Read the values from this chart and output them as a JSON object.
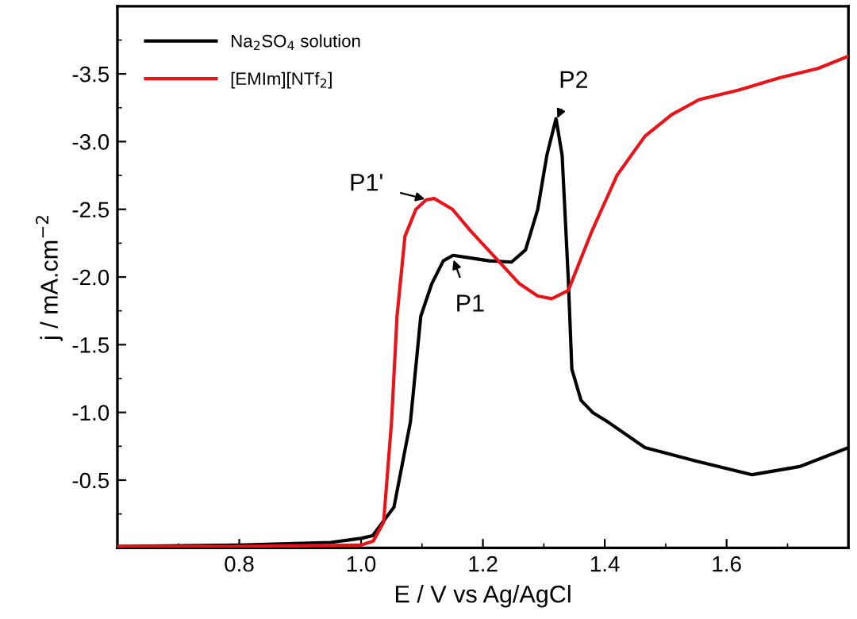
{
  "chart_data": {
    "type": "line",
    "xlabel": "E / V vs Ag/AgCl",
    "ylabel": "j / mA.cm$^{−2}$",
    "xlim": [
      0.6,
      1.8
    ],
    "ylim": [
      0,
      -4.0
    ],
    "xticks": [
      0.8,
      {
        "value": 1.0,
        "label": "1.0"
      },
      1.2,
      1.4,
      1.6
    ],
    "yticks": [
      -0.5,
      {
        "value": -1.0,
        "label": "-1.0"
      },
      -1.5,
      {
        "value": -2.0,
        "label": "-2.0"
      },
      -2.5,
      {
        "value": -3.0,
        "label": "-3.0"
      },
      -3.5
    ],
    "grid": false,
    "legend": "top left",
    "marker": "none",
    "line_style": "solid",
    "series": [
      {
        "name": "Na$_{2}$SO$_{4}$ solution",
        "color": "#000000",
        "x": [
          0.6,
          0.8,
          0.95,
          1.0,
          1.019,
          1.054,
          1.081,
          1.098,
          1.116,
          1.135,
          1.151,
          1.18,
          1.21,
          1.247,
          1.27,
          1.29,
          1.305,
          1.32,
          1.33,
          1.34,
          1.346,
          1.361,
          1.38,
          1.405,
          1.466,
          1.55,
          1.642,
          1.72,
          1.8
        ],
        "values": [
          -0.01,
          -0.02,
          -0.04,
          -0.07,
          -0.09,
          -0.3,
          -0.93,
          -1.71,
          -1.95,
          -2.12,
          -2.16,
          -2.14,
          -2.12,
          -2.11,
          -2.2,
          -2.5,
          -2.9,
          -3.17,
          -2.9,
          -2.0,
          -1.32,
          -1.09,
          -1.0,
          -0.93,
          -0.74,
          -0.64,
          -0.54,
          -0.6,
          -0.74
        ]
      },
      {
        "name": "[EMIm][NTf$_{2}$]",
        "color": "#e8141a",
        "x": [
          0.6,
          0.8,
          1.0,
          1.02,
          1.037,
          1.05,
          1.059,
          1.072,
          1.09,
          1.107,
          1.12,
          1.15,
          1.18,
          1.221,
          1.26,
          1.29,
          1.313,
          1.34,
          1.379,
          1.42,
          1.466,
          1.51,
          1.555,
          1.62,
          1.686,
          1.75,
          1.8
        ],
        "values": [
          -0.01,
          -0.01,
          -0.02,
          -0.05,
          -0.19,
          -0.93,
          -1.71,
          -2.3,
          -2.5,
          -2.57,
          -2.58,
          -2.5,
          -2.34,
          -2.14,
          -1.95,
          -1.86,
          -1.84,
          -1.9,
          -2.34,
          -2.75,
          -3.04,
          -3.2,
          -3.31,
          -3.38,
          -3.47,
          -3.54,
          -3.63
        ]
      }
    ],
    "annotations": [
      {
        "text": "P1'",
        "x": 1.11,
        "y": -2.57
      },
      {
        "text": "P1",
        "x": 1.15,
        "y": -2.15
      },
      {
        "text": "P2",
        "x": 1.32,
        "y": -3.15
      }
    ]
  }
}
